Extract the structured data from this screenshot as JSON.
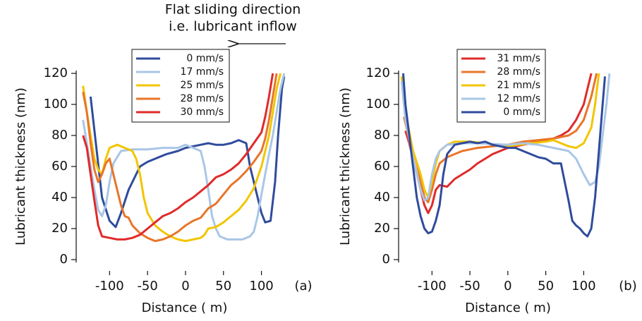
{
  "chart_data": [
    {
      "type": "line",
      "x_label": "Distance ( m)",
      "y_label": "Lubricant thickness (nm)",
      "annotation_lines": [
        "Flat sliding direction",
        "i.e. lubricant inflow"
      ],
      "panel_label": "(a)",
      "xlim": [
        -144,
        132
      ],
      "ylim": [
        0,
        120
      ],
      "xticks": [
        -100,
        -50,
        0,
        50,
        100
      ],
      "yticks": [
        0,
        20,
        40,
        60,
        80,
        100,
        120
      ],
      "series": [
        {
          "name": "0 mm/s",
          "color": "#2f4b9c",
          "x": [
            -125,
            -110,
            -100,
            -92,
            -85,
            -75,
            -60,
            -50,
            -40,
            -25,
            -10,
            0,
            20,
            30,
            40,
            50,
            60,
            70,
            80,
            85,
            95,
            100,
            105,
            112,
            118,
            122,
            127,
            130
          ],
          "values": [
            105,
            40,
            25,
            21,
            30,
            45,
            60,
            63,
            65,
            68,
            70,
            72,
            74,
            75,
            74,
            74,
            75,
            77,
            75,
            60,
            40,
            30,
            24,
            25,
            50,
            80,
            110,
            118
          ]
        },
        {
          "name": "17 mm/s",
          "color": "#a9c6e6",
          "x": [
            -135,
            -130,
            -125,
            -120,
            -115,
            -110,
            -105,
            -100,
            -95,
            -85,
            -70,
            -50,
            -30,
            -10,
            0,
            10,
            20,
            25,
            30,
            35,
            40,
            45,
            55,
            65,
            75,
            85,
            90,
            95,
            100,
            105,
            110,
            115,
            120,
            125,
            130
          ],
          "values": [
            90,
            75,
            60,
            45,
            32,
            28,
            35,
            50,
            62,
            70,
            71,
            71,
            72,
            72,
            74,
            72,
            70,
            60,
            45,
            28,
            20,
            15,
            13,
            13,
            13,
            15,
            18,
            28,
            42,
            55,
            68,
            80,
            95,
            110,
            120
          ]
        },
        {
          "name": "25 mm/s",
          "color": "#f2c500",
          "x": [
            -135,
            -130,
            -125,
            -120,
            -115,
            -110,
            -105,
            -100,
            -90,
            -80,
            -70,
            -65,
            -60,
            -55,
            -50,
            -40,
            -30,
            -20,
            -10,
            0,
            10,
            20,
            25,
            30,
            40,
            50,
            60,
            70,
            80,
            90,
            100,
            110,
            115,
            120,
            125
          ],
          "values": [
            112,
            95,
            80,
            65,
            58,
            55,
            65,
            72,
            74,
            72,
            70,
            65,
            55,
            40,
            30,
            22,
            18,
            15,
            13,
            12,
            13,
            14,
            16,
            20,
            21,
            24,
            28,
            32,
            38,
            46,
            60,
            80,
            95,
            110,
            120
          ]
        },
        {
          "name": "28 mm/s",
          "color": "#e8752a",
          "x": [
            -135,
            -130,
            -125,
            -120,
            -115,
            -110,
            -105,
            -100,
            -95,
            -90,
            -85,
            -80,
            -75,
            -70,
            -60,
            -50,
            -40,
            -30,
            -20,
            -10,
            0,
            10,
            20,
            30,
            40,
            50,
            60,
            70,
            80,
            90,
            100,
            105,
            110,
            115,
            120
          ],
          "values": [
            108,
            95,
            75,
            58,
            50,
            55,
            62,
            65,
            55,
            45,
            35,
            28,
            27,
            22,
            17,
            14,
            12,
            13,
            15,
            18,
            22,
            25,
            27,
            33,
            36,
            42,
            48,
            52,
            57,
            63,
            70,
            78,
            90,
            105,
            120
          ]
        },
        {
          "name": "30 mm/s",
          "color": "#e02a2a",
          "x": [
            -135,
            -130,
            -125,
            -120,
            -115,
            -110,
            -100,
            -90,
            -80,
            -70,
            -60,
            -50,
            -40,
            -30,
            -20,
            -10,
            0,
            10,
            20,
            30,
            40,
            50,
            60,
            70,
            80,
            90,
            100,
            105,
            110,
            115
          ],
          "values": [
            80,
            72,
            55,
            38,
            22,
            15,
            14,
            13,
            13,
            14,
            16,
            20,
            24,
            28,
            30,
            33,
            37,
            40,
            44,
            48,
            53,
            55,
            58,
            62,
            68,
            75,
            82,
            92,
            105,
            120
          ]
        }
      ]
    },
    {
      "type": "line",
      "x_label": "Distance ( m)",
      "y_label": "Lubricant thickness (nm)",
      "panel_label": "(b)",
      "xlim": [
        -144,
        135
      ],
      "ylim": [
        0,
        120
      ],
      "xticks": [
        -100,
        -50,
        0,
        50,
        100
      ],
      "yticks": [
        0,
        20,
        40,
        60,
        80,
        100,
        120
      ],
      "series": [
        {
          "name": "31 mm/s",
          "color": "#e02a2a",
          "x": [
            -135,
            -130,
            -125,
            -120,
            -115,
            -110,
            -105,
            -100,
            -95,
            -90,
            -80,
            -70,
            -60,
            -50,
            -40,
            -30,
            -20,
            -10,
            0,
            10,
            20,
            30,
            40,
            50,
            60,
            70,
            80,
            90,
            100,
            105,
            110
          ],
          "values": [
            83,
            75,
            65,
            55,
            45,
            35,
            30,
            35,
            45,
            48,
            47,
            52,
            55,
            58,
            62,
            65,
            68,
            70,
            72,
            73,
            74,
            75,
            76,
            77,
            78,
            80,
            83,
            90,
            100,
            110,
            120
          ]
        },
        {
          "name": "28 mm/s",
          "color": "#e8752a",
          "x": [
            -137,
            -130,
            -120,
            -110,
            -105,
            -100,
            -95,
            -90,
            -80,
            -70,
            -60,
            -50,
            -40,
            -20,
            0,
            20,
            40,
            60,
            80,
            90,
            100,
            110,
            117
          ],
          "values": [
            92,
            78,
            62,
            40,
            37,
            45,
            55,
            62,
            66,
            68,
            70,
            71,
            72,
            73,
            74,
            76,
            77,
            78,
            80,
            83,
            90,
            105,
            120
          ]
        },
        {
          "name": "21 mm/s",
          "color": "#f2c500",
          "x": [
            -140,
            -135,
            -125,
            -115,
            -110,
            -105,
            -100,
            -95,
            -90,
            -80,
            -70,
            -50,
            -30,
            0,
            30,
            50,
            60,
            70,
            80,
            90,
            100,
            110,
            115,
            120
          ],
          "values": [
            118,
            95,
            70,
            55,
            45,
            40,
            50,
            62,
            70,
            74,
            76,
            76,
            75,
            73,
            75,
            76,
            77,
            75,
            73,
            72,
            75,
            85,
            100,
            120
          ]
        },
        {
          "name": "12 mm/s",
          "color": "#a9c6e6",
          "x": [
            -140,
            -135,
            -125,
            -115,
            -110,
            -105,
            -100,
            -95,
            -90,
            -80,
            -60,
            -40,
            0,
            20,
            40,
            60,
            80,
            90,
            100,
            108,
            115,
            120,
            125,
            130,
            134
          ],
          "values": [
            115,
            90,
            65,
            45,
            38,
            40,
            55,
            65,
            70,
            74,
            75,
            75,
            74,
            75,
            74,
            72,
            70,
            65,
            55,
            48,
            50,
            60,
            80,
            100,
            120
          ]
        },
        {
          "name": "0 mm/s",
          "color": "#2f4b9c",
          "x": [
            -138,
            -135,
            -130,
            -125,
            -120,
            -115,
            -110,
            -105,
            -100,
            -95,
            -90,
            -85,
            -80,
            -70,
            -60,
            -50,
            -40,
            -30,
            -20,
            -10,
            0,
            10,
            20,
            30,
            40,
            50,
            60,
            70,
            75,
            80,
            85,
            90,
            95,
            100,
            105,
            110,
            115,
            120,
            125,
            128
          ],
          "values": [
            120,
            100,
            80,
            60,
            40,
            28,
            20,
            17,
            18,
            25,
            35,
            55,
            68,
            74,
            75,
            76,
            75,
            76,
            74,
            73,
            72,
            72,
            70,
            68,
            66,
            65,
            62,
            62,
            50,
            38,
            25,
            22,
            20,
            17,
            15,
            20,
            40,
            70,
            100,
            118
          ]
        }
      ]
    }
  ]
}
